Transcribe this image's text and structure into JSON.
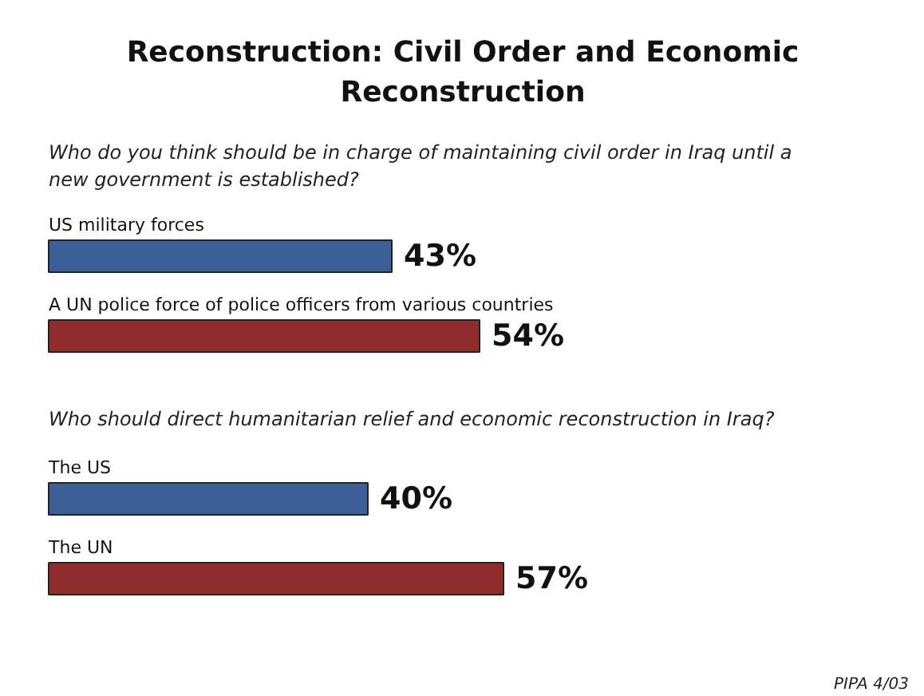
{
  "chart_data": [
    {
      "type": "bar",
      "orientation": "horizontal",
      "title": "Reconstruction: Civil Order and Economic Reconstruction",
      "subtitle": "Who do you think should be in charge of maintaining civil order in Iraq until a new government is established?",
      "categories": [
        "US military forces",
        "A UN police force of police officers from various countries"
      ],
      "values": [
        43,
        54
      ],
      "colors": [
        "#3b5f96",
        "#8e2b2b"
      ],
      "value_labels": [
        "43%",
        "54%"
      ],
      "data_labels": true
    },
    {
      "type": "bar",
      "orientation": "horizontal",
      "subtitle": "Who should direct humanitarian relief and economic reconstruction in Iraq?",
      "categories": [
        "The US",
        "The UN"
      ],
      "values": [
        40,
        57
      ],
      "colors": [
        "#3b5f96",
        "#8e2b2b"
      ],
      "value_labels": [
        "40%",
        "57%"
      ],
      "data_labels": true,
      "annotations": [
        "PIPA 4/03"
      ]
    }
  ]
}
